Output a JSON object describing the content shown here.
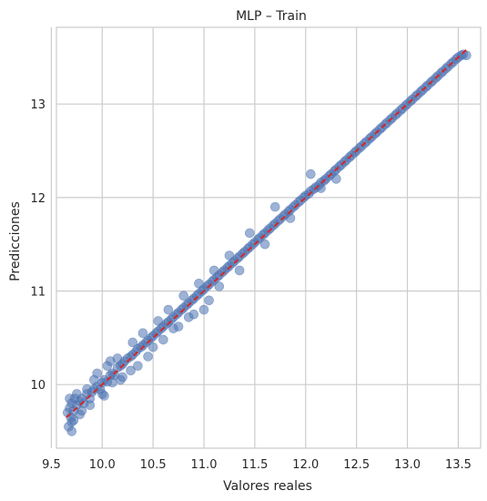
{
  "chart_data": {
    "type": "scatter",
    "title": "MLP – Train",
    "xlabel": "Valores reales",
    "ylabel": "Predicciones",
    "xlim": [
      9.55,
      13.72
    ],
    "ylim": [
      9.32,
      13.82
    ],
    "x_ticks": [
      9.5,
      10.0,
      10.5,
      11.0,
      11.5,
      12.0,
      12.5,
      13.0,
      13.5
    ],
    "x_tick_labels": [
      "9.5",
      "10.0",
      "10.5",
      "11.0",
      "11.5",
      "12.0",
      "12.5",
      "13.0",
      "13.5"
    ],
    "y_ticks": [
      10,
      11,
      12,
      13
    ],
    "y_tick_labels": [
      "10",
      "11",
      "12",
      "13"
    ],
    "grid": true,
    "colors": {
      "points": "#4c72b0",
      "reference_line": "#d62728",
      "grid": "#cccccc"
    },
    "reference_line": {
      "x": [
        9.65,
        13.6
      ],
      "y": [
        9.65,
        13.6
      ]
    },
    "series": [
      {
        "x": [
          9.66,
          9.67,
          9.68,
          9.69,
          9.7,
          9.7,
          9.72,
          9.73,
          9.75,
          9.78,
          9.8,
          9.82,
          9.85,
          9.88,
          9.9,
          9.92,
          9.95,
          9.98,
          10.0,
          10.02,
          10.05,
          10.08,
          10.1,
          10.12,
          10.15,
          10.18,
          10.2,
          10.22,
          10.25,
          10.28,
          10.3,
          10.33,
          10.35,
          10.38,
          10.4,
          10.43,
          10.45,
          10.48,
          10.5,
          10.53,
          10.55,
          10.58,
          10.6,
          10.63,
          10.65,
          10.68,
          10.7,
          10.73,
          10.75,
          10.78,
          10.8,
          10.83,
          10.85,
          10.88,
          10.9,
          10.93,
          10.95,
          10.98,
          11.0,
          11.03,
          11.05,
          11.08,
          11.1,
          11.13,
          11.15,
          11.18,
          11.2,
          11.23,
          11.25,
          11.28,
          11.3,
          11.33,
          11.35,
          11.38,
          11.4,
          11.43,
          11.45,
          11.48,
          11.5,
          11.53,
          11.55,
          11.58,
          11.6,
          11.63,
          11.65,
          11.68,
          11.7,
          11.73,
          11.75,
          11.78,
          11.8,
          11.83,
          11.85,
          11.88,
          11.9,
          11.93,
          11.95,
          11.98,
          12.0,
          12.03,
          12.05,
          12.08,
          12.1,
          12.13,
          12.15,
          12.18,
          12.2,
          12.23,
          12.25,
          12.28,
          12.3,
          12.33,
          12.35,
          12.38,
          12.4,
          12.43,
          12.45,
          12.48,
          12.5,
          12.53,
          12.55,
          12.58,
          12.6,
          12.63,
          12.65,
          12.68,
          12.7,
          12.73,
          12.75,
          12.78,
          12.8,
          12.83,
          12.85,
          12.88,
          12.9,
          12.93,
          12.95,
          12.98,
          13.0,
          13.03,
          13.05,
          13.08,
          13.1,
          13.13,
          13.15,
          13.18,
          13.2,
          13.23,
          13.25,
          13.28,
          13.3,
          13.33,
          13.35,
          13.38,
          13.4,
          13.43,
          13.45,
          13.48,
          13.5,
          13.53,
          13.55,
          13.58,
          9.7,
          9.72,
          9.68,
          9.8,
          9.85,
          9.88,
          9.95,
          10.02,
          10.05,
          10.1,
          10.15,
          10.18,
          10.3,
          10.35,
          10.4,
          10.45,
          10.55,
          10.6,
          10.65,
          10.75,
          10.8,
          10.85,
          10.95,
          11.0,
          11.1,
          11.15,
          11.25,
          11.35,
          11.45,
          11.6,
          11.7,
          11.85,
          12.05,
          12.15,
          12.3,
          9.75,
          9.78,
          9.92,
          10.0,
          10.08,
          10.2,
          10.28,
          10.5,
          10.7,
          10.9,
          11.05
        ],
        "y": [
          9.7,
          9.55,
          9.75,
          9.65,
          9.8,
          9.6,
          9.72,
          9.85,
          9.78,
          9.82,
          9.85,
          9.8,
          9.9,
          9.85,
          9.92,
          9.95,
          9.98,
          9.95,
          10.02,
          10.05,
          10.03,
          10.1,
          10.12,
          10.1,
          10.18,
          10.2,
          10.22,
          10.25,
          10.28,
          10.3,
          10.32,
          10.35,
          10.38,
          10.4,
          10.42,
          10.45,
          10.47,
          10.5,
          10.52,
          10.55,
          10.57,
          10.6,
          10.62,
          10.65,
          10.67,
          10.7,
          10.72,
          10.75,
          10.77,
          10.8,
          10.82,
          10.85,
          10.87,
          10.9,
          10.92,
          10.95,
          10.97,
          11.0,
          11.02,
          11.05,
          11.07,
          11.1,
          11.12,
          11.15,
          11.17,
          11.2,
          11.22,
          11.25,
          11.27,
          11.3,
          11.32,
          11.35,
          11.37,
          11.4,
          11.42,
          11.45,
          11.47,
          11.5,
          11.52,
          11.55,
          11.57,
          11.6,
          11.62,
          11.65,
          11.67,
          11.7,
          11.72,
          11.75,
          11.77,
          11.8,
          11.82,
          11.85,
          11.87,
          11.9,
          11.92,
          11.95,
          11.97,
          12.0,
          12.02,
          12.04,
          12.07,
          12.09,
          12.11,
          12.13,
          12.16,
          12.18,
          12.2,
          12.23,
          12.25,
          12.28,
          12.3,
          12.33,
          12.35,
          12.38,
          12.4,
          12.43,
          12.45,
          12.48,
          12.5,
          12.53,
          12.55,
          12.58,
          12.6,
          12.63,
          12.65,
          12.68,
          12.7,
          12.73,
          12.75,
          12.78,
          12.8,
          12.83,
          12.85,
          12.88,
          12.9,
          12.93,
          12.95,
          12.98,
          13.0,
          13.03,
          13.05,
          13.08,
          13.1,
          13.13,
          13.15,
          13.18,
          13.2,
          13.23,
          13.25,
          13.28,
          13.3,
          13.33,
          13.35,
          13.38,
          13.4,
          13.43,
          13.45,
          13.48,
          13.5,
          13.52,
          13.53,
          13.52,
          9.5,
          9.62,
          9.85,
          9.72,
          9.95,
          9.78,
          10.12,
          9.88,
          10.2,
          10.02,
          10.28,
          10.05,
          10.45,
          10.2,
          10.55,
          10.3,
          10.68,
          10.48,
          10.8,
          10.62,
          10.95,
          10.72,
          11.08,
          10.8,
          11.22,
          11.05,
          11.38,
          11.22,
          11.62,
          11.5,
          11.9,
          11.78,
          12.25,
          12.1,
          12.2,
          9.9,
          9.68,
          10.05,
          9.9,
          10.25,
          10.08,
          10.15,
          10.4,
          10.6,
          10.75,
          10.9
        ]
      }
    ]
  }
}
